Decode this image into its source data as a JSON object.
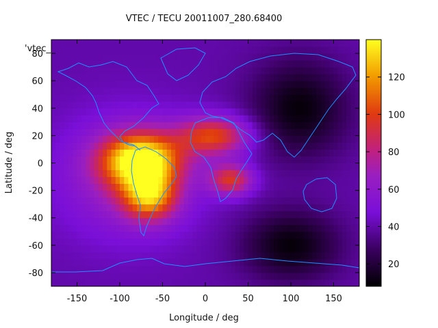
{
  "chart_data": {
    "type": "heatmap",
    "title": "VTEC / TECU 20011007_280.68400",
    "xlabel": "Longitude / deg",
    "ylabel": "Latitude / deg",
    "xlim": [
      -180,
      180
    ],
    "ylim": [
      -90,
      90
    ],
    "x_ticks": [
      -150,
      -100,
      -50,
      0,
      50,
      100,
      150
    ],
    "y_ticks": [
      80,
      60,
      40,
      20,
      0,
      -20,
      -40,
      -60,
      -80
    ],
    "colorbar": {
      "range": [
        8,
        140
      ],
      "ticks": [
        20,
        40,
        60,
        80,
        100,
        120
      ]
    },
    "series_label": "'vtec_",
    "field_features": [
      {
        "name": "crest-americas",
        "lon": -75,
        "lat": 2,
        "peak": 135
      },
      {
        "name": "crest-south-america",
        "lon": -65,
        "lat": -25,
        "peak": 125
      },
      {
        "name": "crest-north-africa",
        "lon": 10,
        "lat": 20,
        "peak": 100
      },
      {
        "name": "crest-south-africa",
        "lon": 30,
        "lat": -12,
        "peak": 95
      },
      {
        "name": "night-minimum-asia",
        "lon": 110,
        "lat": 40,
        "peak": 12
      },
      {
        "name": "night-minimum-south-pacific",
        "lon": 100,
        "lat": -60,
        "peak": 10
      }
    ]
  }
}
